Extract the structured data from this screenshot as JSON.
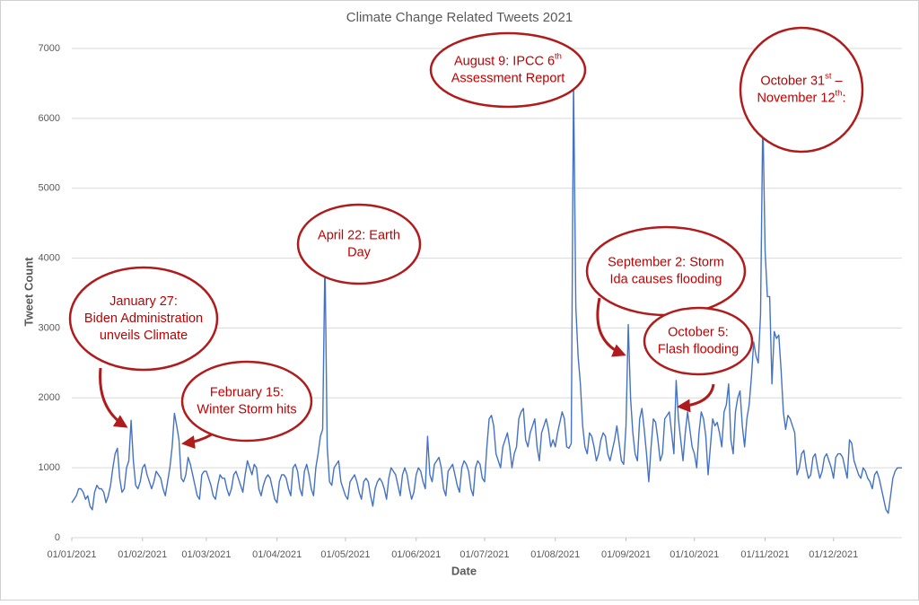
{
  "chart_data": {
    "type": "line",
    "title": "Climate Change Related Tweets 2021",
    "xlabel": "Date",
    "ylabel": "Tweet Count",
    "color": "#4472c4",
    "grid": true,
    "xlim": [
      "2021-01-01",
      "2021-12-31"
    ],
    "ylim": [
      0,
      7000
    ],
    "yticks": [
      0,
      1000,
      2000,
      3000,
      4000,
      5000,
      6000,
      7000
    ],
    "xticks": [
      {
        "value": "2021-01-01",
        "label": "01/01/2021"
      },
      {
        "value": "2021-02-01",
        "label": "01/02/2021"
      },
      {
        "value": "2021-03-01",
        "label": "01/03/2021"
      },
      {
        "value": "2021-04-01",
        "label": "01/04/2021"
      },
      {
        "value": "2021-05-01",
        "label": "01/05/2021"
      },
      {
        "value": "2021-06-01",
        "label": "01/06/2021"
      },
      {
        "value": "2021-07-01",
        "label": "01/07/2021"
      },
      {
        "value": "2021-08-01",
        "label": "01/08/2021"
      },
      {
        "value": "2021-09-01",
        "label": "01/09/2021"
      },
      {
        "value": "2021-10-01",
        "label": "01/10/2021"
      },
      {
        "value": "2021-11-01",
        "label": "01/11/2021"
      },
      {
        "value": "2021-12-01",
        "label": "01/12/2021"
      }
    ],
    "x": [
      "2021-01-01",
      "2021-01-02",
      "2021-01-03",
      "2021-01-04",
      "2021-01-05",
      "2021-01-06",
      "2021-01-07",
      "2021-01-08",
      "2021-01-09",
      "2021-01-10",
      "2021-01-11",
      "2021-01-12",
      "2021-01-13",
      "2021-01-14",
      "2021-01-15",
      "2021-01-16",
      "2021-01-17",
      "2021-01-18",
      "2021-01-19",
      "2021-01-20",
      "2021-01-21",
      "2021-01-22",
      "2021-01-23",
      "2021-01-24",
      "2021-01-25",
      "2021-01-26",
      "2021-01-27",
      "2021-01-28",
      "2021-01-29",
      "2021-01-30",
      "2021-01-31",
      "2021-02-01",
      "2021-02-02",
      "2021-02-03",
      "2021-02-04",
      "2021-02-05",
      "2021-02-06",
      "2021-02-07",
      "2021-02-08",
      "2021-02-09",
      "2021-02-10",
      "2021-02-11",
      "2021-02-12",
      "2021-02-13",
      "2021-02-14",
      "2021-02-15",
      "2021-02-16",
      "2021-02-17",
      "2021-02-18",
      "2021-02-19",
      "2021-02-20",
      "2021-02-21",
      "2021-02-22",
      "2021-02-23",
      "2021-02-24",
      "2021-02-25",
      "2021-02-26",
      "2021-02-27",
      "2021-02-28",
      "2021-03-01",
      "2021-03-02",
      "2021-03-03",
      "2021-03-04",
      "2021-03-05",
      "2021-03-06",
      "2021-03-07",
      "2021-03-08",
      "2021-03-09",
      "2021-03-10",
      "2021-03-11",
      "2021-03-12",
      "2021-03-13",
      "2021-03-14",
      "2021-03-15",
      "2021-03-16",
      "2021-03-17",
      "2021-03-18",
      "2021-03-19",
      "2021-03-20",
      "2021-03-21",
      "2021-03-22",
      "2021-03-23",
      "2021-03-24",
      "2021-03-25",
      "2021-03-26",
      "2021-03-27",
      "2021-03-28",
      "2021-03-29",
      "2021-03-30",
      "2021-03-31",
      "2021-04-01",
      "2021-04-02",
      "2021-04-03",
      "2021-04-04",
      "2021-04-05",
      "2021-04-06",
      "2021-04-07",
      "2021-04-08",
      "2021-04-09",
      "2021-04-10",
      "2021-04-11",
      "2021-04-12",
      "2021-04-13",
      "2021-04-14",
      "2021-04-15",
      "2021-04-16",
      "2021-04-17",
      "2021-04-18",
      "2021-04-19",
      "2021-04-20",
      "2021-04-21",
      "2021-04-22",
      "2021-04-23",
      "2021-04-24",
      "2021-04-25",
      "2021-04-26",
      "2021-04-27",
      "2021-04-28",
      "2021-04-29",
      "2021-04-30",
      "2021-05-01",
      "2021-05-02",
      "2021-05-03",
      "2021-05-04",
      "2021-05-05",
      "2021-05-06",
      "2021-05-07",
      "2021-05-08",
      "2021-05-09",
      "2021-05-10",
      "2021-05-11",
      "2021-05-12",
      "2021-05-13",
      "2021-05-14",
      "2021-05-15",
      "2021-05-16",
      "2021-05-17",
      "2021-05-18",
      "2021-05-19",
      "2021-05-20",
      "2021-05-21",
      "2021-05-22",
      "2021-05-23",
      "2021-05-24",
      "2021-05-25",
      "2021-05-26",
      "2021-05-27",
      "2021-05-28",
      "2021-05-29",
      "2021-05-30",
      "2021-05-31",
      "2021-06-01",
      "2021-06-02",
      "2021-06-03",
      "2021-06-04",
      "2021-06-05",
      "2021-06-06",
      "2021-06-07",
      "2021-06-08",
      "2021-06-09",
      "2021-06-10",
      "2021-06-11",
      "2021-06-12",
      "2021-06-13",
      "2021-06-14",
      "2021-06-15",
      "2021-06-16",
      "2021-06-17",
      "2021-06-18",
      "2021-06-19",
      "2021-06-20",
      "2021-06-21",
      "2021-06-22",
      "2021-06-23",
      "2021-06-24",
      "2021-06-25",
      "2021-06-26",
      "2021-06-27",
      "2021-06-28",
      "2021-06-29",
      "2021-06-30",
      "2021-07-01",
      "2021-07-02",
      "2021-07-03",
      "2021-07-04",
      "2021-07-05",
      "2021-07-06",
      "2021-07-07",
      "2021-07-08",
      "2021-07-09",
      "2021-07-10",
      "2021-07-11",
      "2021-07-12",
      "2021-07-13",
      "2021-07-14",
      "2021-07-15",
      "2021-07-16",
      "2021-07-17",
      "2021-07-18",
      "2021-07-19",
      "2021-07-20",
      "2021-07-21",
      "2021-07-22",
      "2021-07-23",
      "2021-07-24",
      "2021-07-25",
      "2021-07-26",
      "2021-07-27",
      "2021-07-28",
      "2021-07-29",
      "2021-07-30",
      "2021-07-31",
      "2021-08-01",
      "2021-08-02",
      "2021-08-03",
      "2021-08-04",
      "2021-08-05",
      "2021-08-06",
      "2021-08-07",
      "2021-08-08",
      "2021-08-09",
      "2021-08-10",
      "2021-08-11",
      "2021-08-12",
      "2021-08-13",
      "2021-08-14",
      "2021-08-15",
      "2021-08-16",
      "2021-08-17",
      "2021-08-18",
      "2021-08-19",
      "2021-08-20",
      "2021-08-21",
      "2021-08-22",
      "2021-08-23",
      "2021-08-24",
      "2021-08-25",
      "2021-08-26",
      "2021-08-27",
      "2021-08-28",
      "2021-08-29",
      "2021-08-30",
      "2021-08-31",
      "2021-09-01",
      "2021-09-02",
      "2021-09-03",
      "2021-09-04",
      "2021-09-05",
      "2021-09-06",
      "2021-09-07",
      "2021-09-08",
      "2021-09-09",
      "2021-09-10",
      "2021-09-11",
      "2021-09-12",
      "2021-09-13",
      "2021-09-14",
      "2021-09-15",
      "2021-09-16",
      "2021-09-17",
      "2021-09-18",
      "2021-09-19",
      "2021-09-20",
      "2021-09-21",
      "2021-09-22",
      "2021-09-23",
      "2021-09-24",
      "2021-09-25",
      "2021-09-26",
      "2021-09-27",
      "2021-09-28",
      "2021-09-29",
      "2021-09-30",
      "2021-10-01",
      "2021-10-02",
      "2021-10-03",
      "2021-10-04",
      "2021-10-05",
      "2021-10-06",
      "2021-10-07",
      "2021-10-08",
      "2021-10-09",
      "2021-10-10",
      "2021-10-11",
      "2021-10-12",
      "2021-10-13",
      "2021-10-14",
      "2021-10-15",
      "2021-10-16",
      "2021-10-17",
      "2021-10-18",
      "2021-10-19",
      "2021-10-20",
      "2021-10-21",
      "2021-10-22",
      "2021-10-23",
      "2021-10-24",
      "2021-10-25",
      "2021-10-26",
      "2021-10-27",
      "2021-10-28",
      "2021-10-29",
      "2021-10-30",
      "2021-10-31",
      "2021-11-01",
      "2021-11-02",
      "2021-11-03",
      "2021-11-04",
      "2021-11-05",
      "2021-11-06",
      "2021-11-07",
      "2021-11-08",
      "2021-11-09",
      "2021-11-10",
      "2021-11-11",
      "2021-11-12",
      "2021-11-13",
      "2021-11-14",
      "2021-11-15",
      "2021-11-16",
      "2021-11-17",
      "2021-11-18",
      "2021-11-19",
      "2021-11-20",
      "2021-11-21",
      "2021-11-22",
      "2021-11-23",
      "2021-11-24",
      "2021-11-25",
      "2021-11-26",
      "2021-11-27",
      "2021-11-28",
      "2021-11-29",
      "2021-11-30",
      "2021-12-01",
      "2021-12-02",
      "2021-12-03",
      "2021-12-04",
      "2021-12-05",
      "2021-12-06",
      "2021-12-07",
      "2021-12-08",
      "2021-12-09",
      "2021-12-10",
      "2021-12-11",
      "2021-12-12",
      "2021-12-13",
      "2021-12-14",
      "2021-12-15",
      "2021-12-16",
      "2021-12-17",
      "2021-12-18",
      "2021-12-19",
      "2021-12-20",
      "2021-12-21",
      "2021-12-22",
      "2021-12-23",
      "2021-12-24",
      "2021-12-25",
      "2021-12-26",
      "2021-12-27",
      "2021-12-28",
      "2021-12-29",
      "2021-12-30",
      "2021-12-31"
    ],
    "values": [
      500,
      550,
      600,
      700,
      700,
      650,
      550,
      600,
      450,
      400,
      650,
      750,
      700,
      700,
      650,
      500,
      600,
      750,
      1000,
      1200,
      1280,
      850,
      650,
      700,
      1000,
      1100,
      1680,
      1100,
      750,
      700,
      800,
      1000,
      1050,
      900,
      800,
      700,
      800,
      950,
      900,
      850,
      700,
      600,
      800,
      1000,
      1300,
      1780,
      1600,
      1400,
      850,
      800,
      900,
      1150,
      1050,
      900,
      750,
      600,
      550,
      900,
      950,
      950,
      850,
      750,
      600,
      550,
      750,
      900,
      850,
      850,
      700,
      600,
      700,
      900,
      950,
      850,
      750,
      650,
      900,
      1100,
      1000,
      900,
      1050,
      1000,
      700,
      600,
      750,
      850,
      900,
      850,
      700,
      550,
      500,
      800,
      900,
      900,
      850,
      700,
      600,
      1000,
      1050,
      950,
      700,
      600,
      950,
      1050,
      900,
      700,
      600,
      1000,
      1200,
      1450,
      1550,
      4000,
      1300,
      800,
      750,
      1000,
      1050,
      1100,
      800,
      700,
      600,
      550,
      800,
      850,
      900,
      800,
      650,
      550,
      800,
      850,
      800,
      600,
      450,
      700,
      800,
      850,
      800,
      700,
      550,
      850,
      1000,
      950,
      900,
      750,
      600,
      900,
      1000,
      900,
      700,
      550,
      650,
      900,
      1000,
      950,
      800,
      700,
      1450,
      900,
      800,
      1050,
      1100,
      1150,
      1000,
      700,
      600,
      950,
      1000,
      1050,
      900,
      750,
      650,
      1000,
      1100,
      1050,
      950,
      700,
      600,
      1000,
      1100,
      1050,
      850,
      800,
      1300,
      1700,
      1750,
      1600,
      1200,
      1100,
      1000,
      1300,
      1400,
      1500,
      1300,
      1000,
      1200,
      1300,
      1700,
      1800,
      1850,
      1400,
      1300,
      1500,
      1600,
      1700,
      1300,
      1100,
      1500,
      1600,
      1700,
      1550,
      1300,
      1400,
      1300,
      1500,
      1650,
      1800,
      1700,
      1300,
      1280,
      1350,
      6550,
      3300,
      2600,
      2200,
      1600,
      1300,
      1200,
      1500,
      1450,
      1300,
      1100,
      1200,
      1400,
      1500,
      1450,
      1200,
      1100,
      1250,
      1400,
      1600,
      1350,
      1100,
      1050,
      1600,
      3050,
      2000,
      1500,
      1200,
      1100,
      1700,
      1850,
      1550,
      1200,
      800,
      1300,
      1700,
      1650,
      1400,
      1100,
      1200,
      1700,
      1750,
      1800,
      1500,
      1200,
      2250,
      1700,
      1400,
      1100,
      1500,
      1800,
      1550,
      1300,
      1200,
      1000,
      1500,
      1800,
      1700,
      1450,
      900,
      1300,
      1700,
      1600,
      1650,
      1500,
      1300,
      1800,
      1900,
      2200,
      1400,
      1200,
      1800,
      2000,
      2100,
      1600,
      1300,
      1700,
      1900,
      2300,
      2800,
      2600,
      2500,
      3200,
      6050,
      4100,
      3450,
      3450,
      2200,
      2950,
      2850,
      2900,
      2400,
      1800,
      1550,
      1750,
      1700,
      1600,
      1500,
      900,
      1000,
      1200,
      1250,
      1000,
      850,
      900,
      1150,
      1200,
      1000,
      850,
      950,
      1150,
      1200,
      1100,
      1000,
      850,
      1150,
      1200,
      1200,
      1150,
      1000,
      850,
      1400,
      1350,
      1100,
      1000,
      900,
      850,
      1000,
      950,
      850,
      800,
      700,
      900,
      950,
      850,
      700,
      550,
      400,
      350,
      600,
      850,
      950,
      1000,
      1000,
      1000
    ],
    "annotations": [
      {
        "lines": [
          [
            "January 27:"
          ],
          [
            "Biden Administration"
          ],
          [
            "unveils Climate"
          ]
        ]
      },
      {
        "lines": [
          [
            "February 15:"
          ],
          [
            "Winter Storm hits"
          ]
        ]
      },
      {
        "lines": [
          [
            "April 22: Earth"
          ],
          [
            "Day"
          ]
        ]
      },
      {
        "lines": [
          [
            "August 9: IPCC 6",
            "th"
          ],
          [
            "Assessment Report"
          ]
        ]
      },
      {
        "lines": [
          [
            "September 2: Storm"
          ],
          [
            "Ida causes flooding"
          ]
        ]
      },
      {
        "lines": [
          [
            "October 5:"
          ],
          [
            "Flash flooding"
          ]
        ]
      },
      {
        "lines": [
          [
            "October 31",
            "st",
            " –"
          ],
          [
            "November 12",
            "th",
            ":"
          ]
        ]
      }
    ]
  }
}
